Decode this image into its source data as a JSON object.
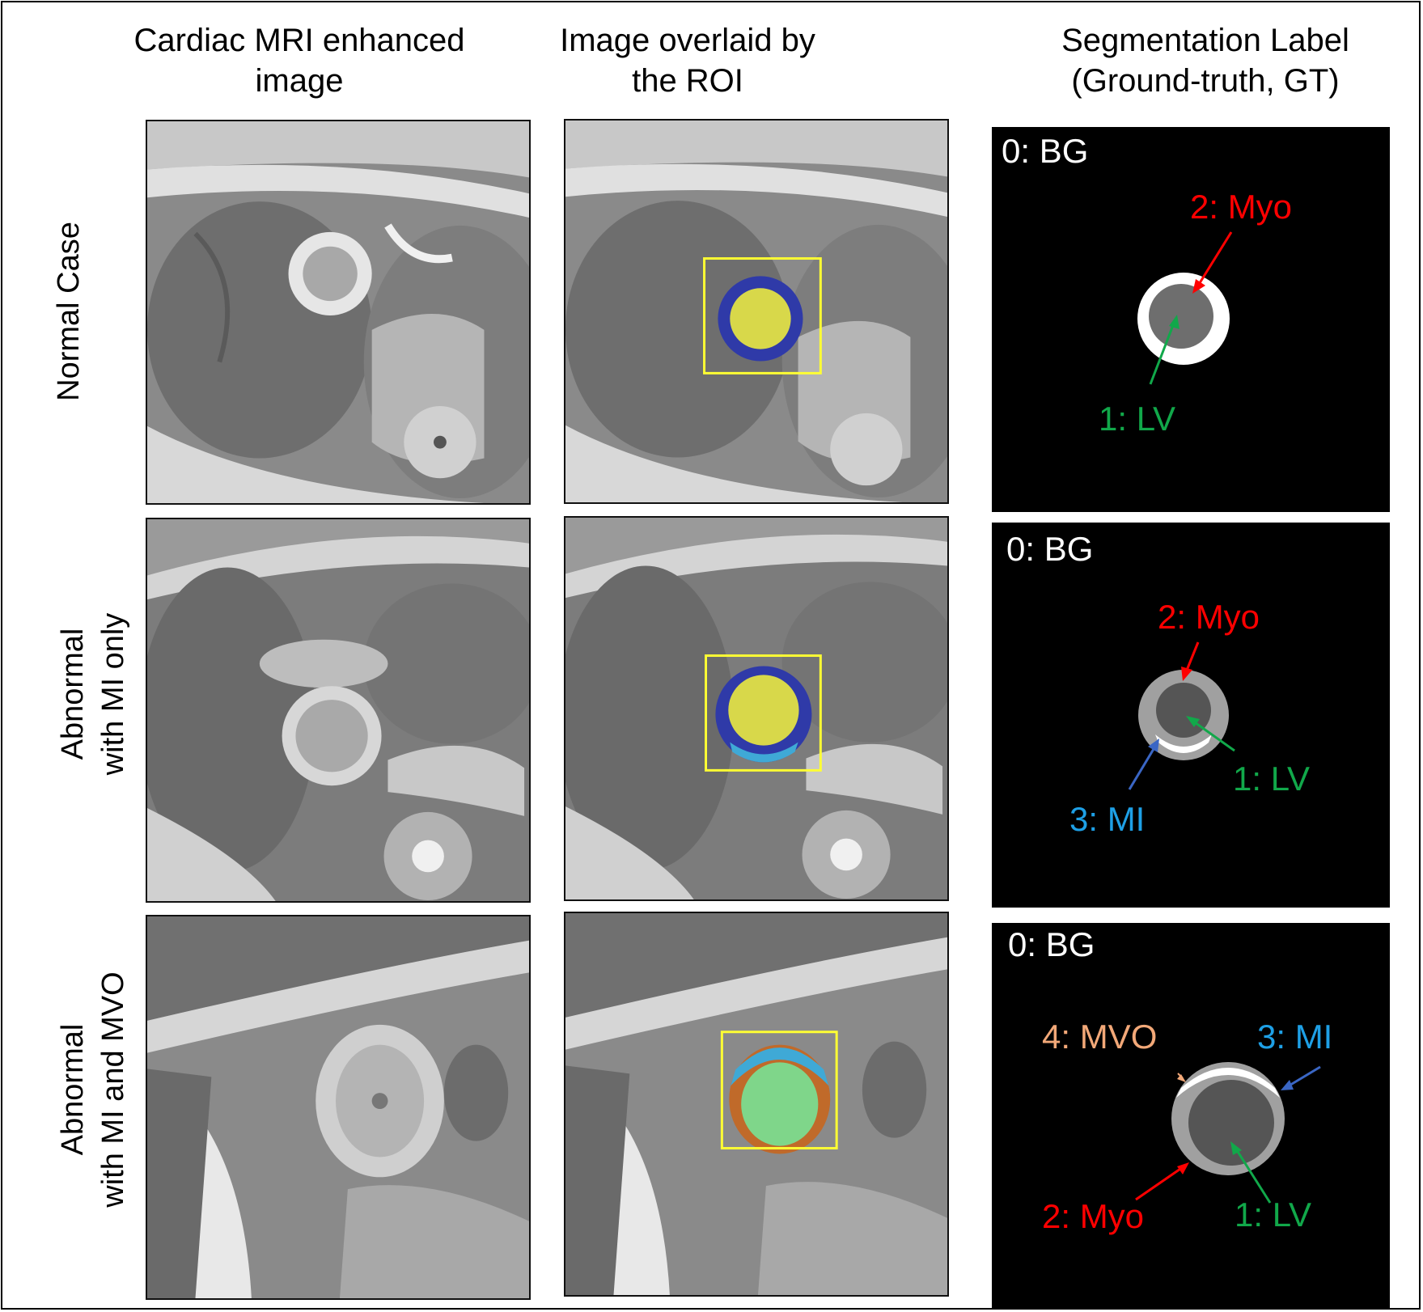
{
  "column_headers": {
    "enhanced_line1": "Cardiac MRI enhanced",
    "enhanced_line2": "image",
    "overlay_line1": "Image overlaid by",
    "overlay_line2": "the ROI",
    "label_line1": "Segmentation Label",
    "label_line2": "(Ground-truth, GT)"
  },
  "rows": [
    {
      "label_line1": "Normal Case",
      "label_line2": ""
    },
    {
      "label_line1": "Abnormal",
      "label_line2": "with MI only"
    },
    {
      "label_line1": "Abnormal",
      "label_line2": "with MI and MVO"
    }
  ],
  "segmentation_labels": [
    {
      "bg": "0: BG",
      "myo": "2: Myo",
      "lv": "1: LV"
    },
    {
      "bg": "0: BG",
      "myo": "2: Myo",
      "lv": "1: LV",
      "mi": "3: MI"
    },
    {
      "bg": "0: BG",
      "mvo": "4: MVO",
      "mi": "3: MI",
      "myo": "2: Myo",
      "lv": "1: LV"
    }
  ],
  "colors": {
    "roi_box": "#ffff33",
    "overlay_lv": "#d8d84a",
    "overlay_myo": "#2f3aa8",
    "overlay_mi": "#3fa9d6",
    "overlay_mvo": "#c06a2a",
    "overlay_lv_row3": "#7fd68a",
    "label_myo": "#ff0000",
    "label_lv": "#11a84a",
    "label_mi": "#1ea0e6",
    "label_mvo": "#f2a878",
    "label_bg": "#ffffff"
  }
}
